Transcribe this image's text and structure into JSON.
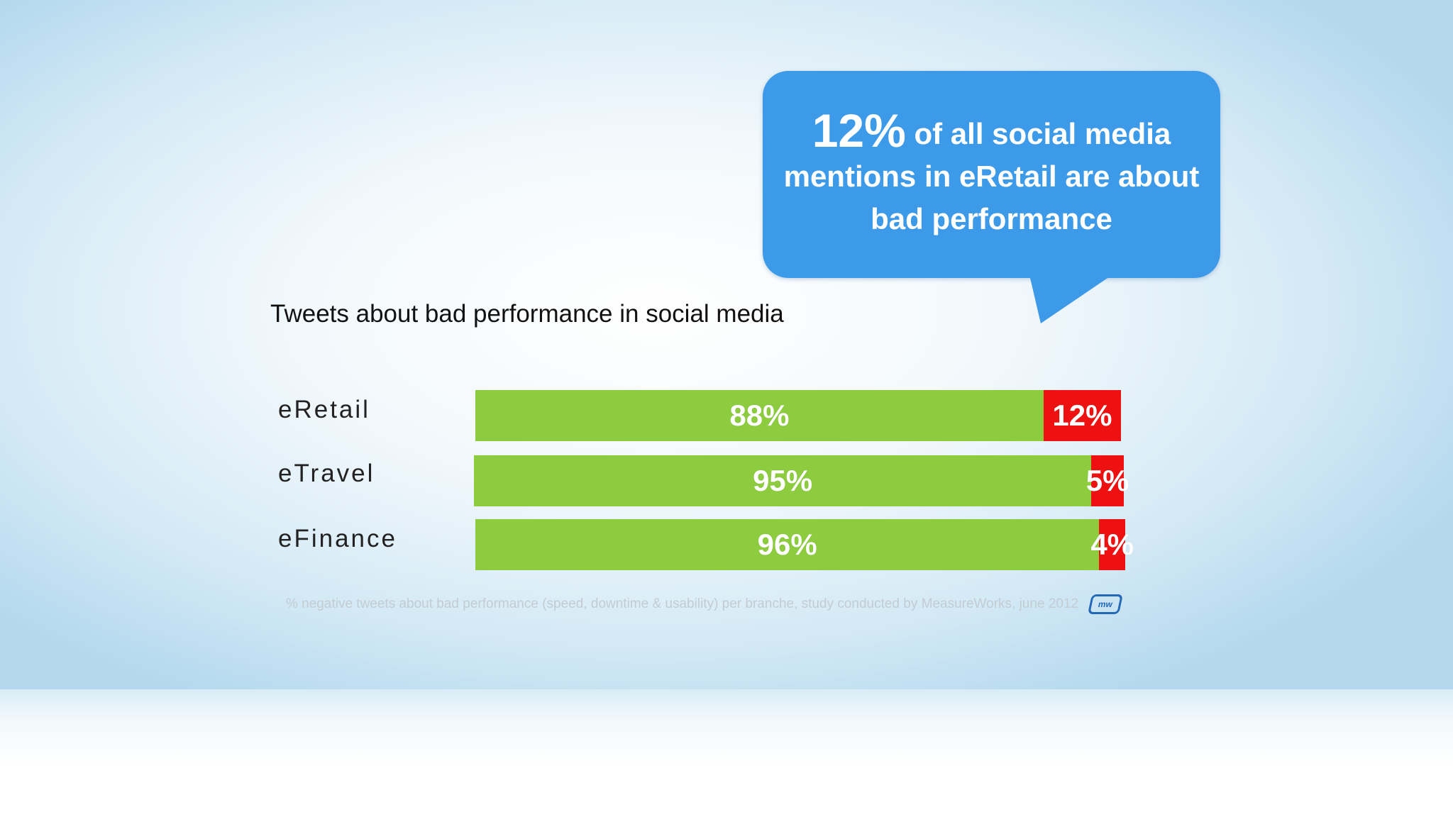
{
  "callout": {
    "big": "12%",
    "text": " of all social media mentions in eRetail are about bad performance"
  },
  "footnote": "% negative tweets about bad performance (speed, downtime & usability) per branche, study conducted by MeasureWorks, june 2012",
  "logo_text": "mw",
  "colors": {
    "good": "#8dcc3f",
    "bad": "#ee1111",
    "callout": "#3d9ae8"
  },
  "chart_data": {
    "type": "bar",
    "orientation": "horizontal",
    "stacked": true,
    "title": "Tweets about bad performance in social media",
    "categories": [
      "eRetail",
      "eTravel",
      "eFinance"
    ],
    "series": [
      {
        "values": [
          88,
          95,
          96
        ],
        "labels": [
          "88%",
          "95%",
          "96%"
        ]
      },
      {
        "values": [
          12,
          5,
          4
        ],
        "labels": [
          "12%",
          "5%",
          "4%"
        ]
      }
    ],
    "xlim": [
      0,
      100
    ]
  }
}
